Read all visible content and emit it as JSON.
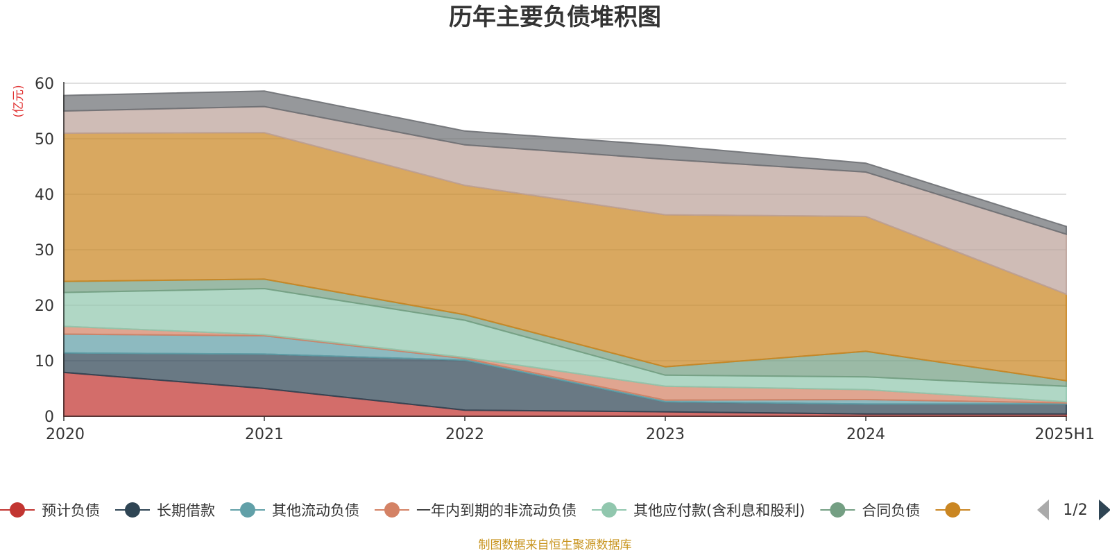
{
  "chart_data": {
    "type": "area",
    "stacked": true,
    "title": "历年主要负债堆积图",
    "unit_label": "(亿元)",
    "x": [
      "2020",
      "2021",
      "2022",
      "2023",
      "2024",
      "2025H1"
    ],
    "yticks": [
      "0",
      "10",
      "20",
      "30",
      "40",
      "50",
      "60"
    ],
    "ylim": [
      0,
      60
    ],
    "grid": true,
    "series": [
      {
        "name": "预计负债",
        "color": "#c23531",
        "values": [
          7.9,
          5.0,
          1.1,
          0.8,
          0.4,
          0.4
        ]
      },
      {
        "name": "长期借款",
        "color": "#2f4554",
        "values": [
          3.5,
          6.2,
          9.0,
          1.8,
          1.8,
          1.8
        ]
      },
      {
        "name": "其他流动负债",
        "color": "#61a0a8",
        "values": [
          3.4,
          3.3,
          0.3,
          0.3,
          0.8,
          0.2
        ]
      },
      {
        "name": "一年内到期的非流动负债",
        "color": "#d48265",
        "values": [
          1.4,
          0.2,
          0.2,
          2.5,
          1.8,
          0.2
        ]
      },
      {
        "name": "其他应付款(含利息和股利)",
        "color": "#91c7ae",
        "values": [
          6.1,
          8.3,
          6.7,
          2.0,
          2.3,
          2.8
        ]
      },
      {
        "name": "合同负债",
        "color": "#749f83",
        "values": [
          2.0,
          1.7,
          1.0,
          1.5,
          4.6,
          1.0
        ]
      },
      {
        "name": "",
        "color": "#ca8622",
        "values": [
          26.7,
          26.4,
          23.3,
          27.4,
          24.3,
          15.6
        ]
      },
      {
        "name": "",
        "color": "#bda29a",
        "values": [
          4.0,
          4.7,
          7.3,
          10.0,
          8.0,
          10.8
        ]
      },
      {
        "name": "",
        "color": "#6e7074",
        "values": [
          2.8,
          2.8,
          2.5,
          2.5,
          1.6,
          1.4
        ]
      }
    ],
    "legend_position": "bottom",
    "legend_page": "1/2"
  },
  "footer": "制图数据来自恒生聚源数据库"
}
